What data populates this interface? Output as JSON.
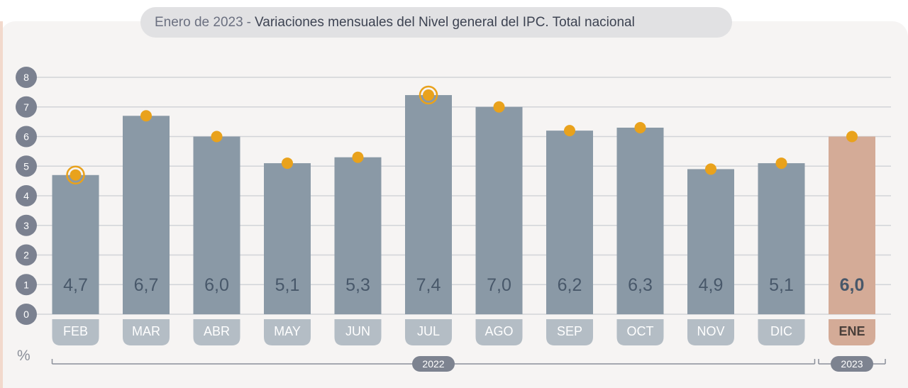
{
  "title": {
    "date": "Enero de 2023",
    "separator": "-",
    "text": "Variaciones mensuales del Nivel general del IPC. Total nacional"
  },
  "chart_data": {
    "type": "bar",
    "categories": [
      "FEB",
      "MAR",
      "ABR",
      "MAY",
      "JUN",
      "JUL",
      "AGO",
      "SEP",
      "OCT",
      "NOV",
      "DIC",
      "ENE"
    ],
    "values": [
      4.7,
      6.7,
      6.0,
      5.1,
      5.3,
      7.4,
      7.0,
      6.2,
      6.3,
      4.9,
      5.1,
      6.0
    ],
    "value_labels": [
      "4,7",
      "6,7",
      "6,0",
      "5,1",
      "5,3",
      "7,4",
      "7,0",
      "6,2",
      "6,3",
      "4,9",
      "5,1",
      "6,0"
    ],
    "highlighted_markers": [
      "FEB",
      "JUL"
    ],
    "highlight_category": "ENE",
    "yticks": [
      "0",
      "1",
      "2",
      "3",
      "4",
      "5",
      "6",
      "7",
      "8"
    ],
    "ylim": [
      0,
      8
    ],
    "ylabel": "%",
    "grid": true,
    "year_groups": [
      {
        "label": "2022",
        "from": "FEB",
        "to": "DIC"
      },
      {
        "label": "2023",
        "from": "ENE",
        "to": "ENE"
      }
    ],
    "colors": {
      "bar": "#8a99a6",
      "bar_highlight": "#d4ab97",
      "marker": "#e9a21c",
      "label_pill": "#b4bdc5",
      "label_pill_highlight": "#d4ab97",
      "tick_pill": "#7b8190",
      "grid": "#d2d4d8",
      "value_text": "#48586a"
    }
  }
}
